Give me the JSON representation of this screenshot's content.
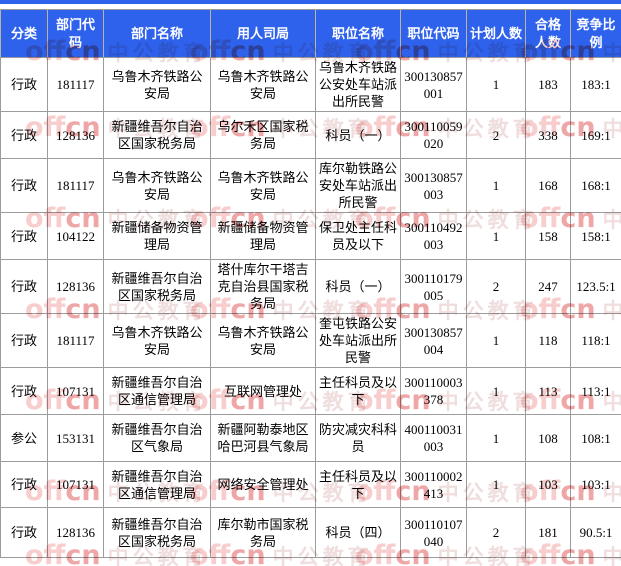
{
  "colors": {
    "accent": "#2F62EC",
    "grid": "#9C9C9C",
    "header_separator": "#BCB49F",
    "header_text": "#FFFFFF",
    "body_text": "#000000",
    "watermark_off": "#F0A4A4",
    "watermark_cn": "#E25C5C",
    "watermark_zh": "#E3C3C3"
  },
  "table": {
    "columns": [
      {
        "key": "category",
        "label": "分类"
      },
      {
        "key": "dept_code",
        "label": "部门代码"
      },
      {
        "key": "dept_name",
        "label": "部门名称"
      },
      {
        "key": "bureau",
        "label": "用人司局"
      },
      {
        "key": "position_name",
        "label": "职位名称"
      },
      {
        "key": "position_code",
        "label": "职位代码"
      },
      {
        "key": "planned",
        "label": "计划人数"
      },
      {
        "key": "qualified",
        "label": "合格人数"
      },
      {
        "key": "ratio",
        "label": "竞争比例"
      }
    ],
    "rows": [
      {
        "category": "行政",
        "dept_code": "181117",
        "dept_name": "乌鲁木齐铁路公安局",
        "bureau": "乌鲁木齐铁路公安局",
        "position_name": "乌鲁木齐铁路公安处车站派出所民警",
        "position_code": "300130857001",
        "planned": "1",
        "qualified": "183",
        "ratio": "183:1"
      },
      {
        "category": "行政",
        "dept_code": "128136",
        "dept_name": "新疆维吾尔自治区国家税务局",
        "bureau": "乌尔禾区国家税务局",
        "position_name": "科员（一）",
        "position_code": "300110059020",
        "planned": "2",
        "qualified": "338",
        "ratio": "169:1"
      },
      {
        "category": "行政",
        "dept_code": "181117",
        "dept_name": "乌鲁木齐铁路公安局",
        "bureau": "乌鲁木齐铁路公安局",
        "position_name": "库尔勒铁路公安处车站派出所民警",
        "position_code": "300130857003",
        "planned": "1",
        "qualified": "168",
        "ratio": "168:1"
      },
      {
        "category": "行政",
        "dept_code": "104122",
        "dept_name": "新疆储备物资管理局",
        "bureau": "新疆储备物资管理局",
        "position_name": "保卫处主任科员及以下",
        "position_code": "300110492003",
        "planned": "1",
        "qualified": "158",
        "ratio": "158:1"
      },
      {
        "category": "行政",
        "dept_code": "128136",
        "dept_name": "新疆维吾尔自治区国家税务局",
        "bureau": "塔什库尔干塔吉克自治县国家税务局",
        "position_name": "科员（一）",
        "position_code": "300110179005",
        "planned": "2",
        "qualified": "247",
        "ratio": "123.5:1"
      },
      {
        "category": "行政",
        "dept_code": "181117",
        "dept_name": "乌鲁木齐铁路公安局",
        "bureau": "乌鲁木齐铁路公安局",
        "position_name": "奎屯铁路公安处车站派出所民警",
        "position_code": "300130857004",
        "planned": "1",
        "qualified": "118",
        "ratio": "118:1"
      },
      {
        "category": "行政",
        "dept_code": "107131",
        "dept_name": "新疆维吾尔自治区通信管理局",
        "bureau": "互联网管理处",
        "position_name": "主任科员及以下",
        "position_code": "300110003378",
        "planned": "1",
        "qualified": "113",
        "ratio": "113:1"
      },
      {
        "category": "参公",
        "dept_code": "153131",
        "dept_name": "新疆维吾尔自治区气象局",
        "bureau": "新疆阿勒泰地区哈巴河县气象局",
        "position_name": "防灾减灾科科员",
        "position_code": "400110031003",
        "planned": "1",
        "qualified": "108",
        "ratio": "108:1"
      },
      {
        "category": "行政",
        "dept_code": "107131",
        "dept_name": "新疆维吾尔自治区通信管理局",
        "bureau": "网络安全管理处",
        "position_name": "主任科员及以下",
        "position_code": "300110002413",
        "planned": "1",
        "qualified": "103",
        "ratio": "103:1"
      },
      {
        "category": "行政",
        "dept_code": "128136",
        "dept_name": "新疆维吾尔自治区国家税务局",
        "bureau": "库尔勒市国家税务局",
        "position_name": "科员（四）",
        "position_code": "300110107040",
        "planned": "2",
        "qualified": "181",
        "ratio": "90.5:1"
      }
    ]
  },
  "watermark": {
    "brand_off": "off",
    "brand_cn": "cn",
    "brand_zh": "中公教育"
  }
}
